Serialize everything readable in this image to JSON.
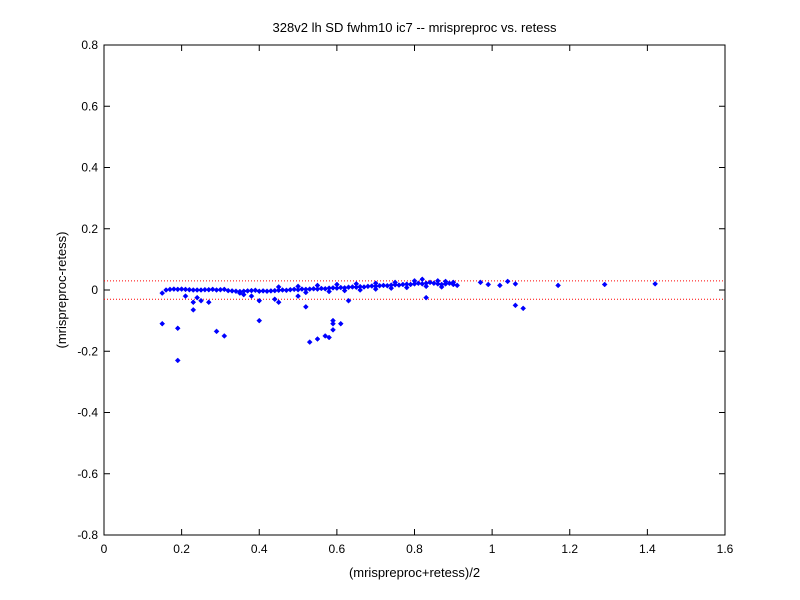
{
  "chart_data": {
    "type": "scatter",
    "title": "328v2 lh SD fwhm10 ic7 -- mrispreproc vs. retess",
    "xlabel": "(mrispreproc+retess)/2",
    "ylabel": "(mrispreproc-retess)",
    "xlim": [
      0,
      1.6
    ],
    "ylim": [
      -0.8,
      0.8
    ],
    "x_ticks": [
      "0",
      "0.2",
      "0.4",
      "0.6",
      "0.8",
      "1",
      "1.2",
      "1.4",
      "1.6"
    ],
    "y_ticks": [
      "0.8",
      "0.6",
      "0.4",
      "0.2",
      "0",
      "-0.2",
      "-0.4",
      "-0.6",
      "-0.8"
    ],
    "x_tick_values": [
      0,
      0.2,
      0.4,
      0.6,
      0.8,
      1.0,
      1.2,
      1.4,
      1.6
    ],
    "y_tick_values": [
      0.8,
      0.6,
      0.4,
      0.2,
      0,
      -0.2,
      -0.4,
      -0.6,
      -0.8
    ],
    "grid": false,
    "marker_color": "#0000ff",
    "reference_line_color": "#ff0000",
    "reference_lines": [
      0.03,
      -0.03
    ],
    "series": [
      {
        "points": [
          [
            0.15,
            -0.01
          ],
          [
            0.16,
            0.0
          ],
          [
            0.17,
            0.002
          ],
          [
            0.18,
            0.003
          ],
          [
            0.19,
            0.002
          ],
          [
            0.2,
            0.003
          ],
          [
            0.21,
            0.002
          ],
          [
            0.22,
            0.001
          ],
          [
            0.23,
            0.0
          ],
          [
            0.24,
            0.0
          ],
          [
            0.25,
            0.0
          ],
          [
            0.26,
            0.001
          ],
          [
            0.27,
            0.001
          ],
          [
            0.28,
            0.002
          ],
          [
            0.29,
            0.0
          ],
          [
            0.3,
            0.001
          ],
          [
            0.31,
            0.002
          ],
          [
            0.32,
            -0.002
          ],
          [
            0.33,
            -0.003
          ],
          [
            0.34,
            -0.004
          ],
          [
            0.35,
            -0.005
          ],
          [
            0.36,
            -0.004
          ],
          [
            0.37,
            -0.003
          ],
          [
            0.38,
            -0.002
          ],
          [
            0.39,
            -0.001
          ],
          [
            0.4,
            -0.004
          ],
          [
            0.41,
            -0.003
          ],
          [
            0.42,
            -0.004
          ],
          [
            0.43,
            -0.003
          ],
          [
            0.44,
            -0.002
          ],
          [
            0.45,
            -0.001
          ],
          [
            0.46,
            0.0
          ],
          [
            0.47,
            -0.001
          ],
          [
            0.48,
            0.001
          ],
          [
            0.49,
            0.002
          ],
          [
            0.5,
            0.001
          ],
          [
            0.51,
            0.003
          ],
          [
            0.52,
            0.002
          ],
          [
            0.53,
            0.003
          ],
          [
            0.54,
            0.004
          ],
          [
            0.55,
            0.003
          ],
          [
            0.56,
            0.005
          ],
          [
            0.57,
            0.004
          ],
          [
            0.58,
            0.006
          ],
          [
            0.59,
            0.007
          ],
          [
            0.6,
            0.006
          ],
          [
            0.61,
            0.008
          ],
          [
            0.62,
            0.007
          ],
          [
            0.63,
            0.009
          ],
          [
            0.64,
            0.01
          ],
          [
            0.65,
            0.009
          ],
          [
            0.66,
            0.011
          ],
          [
            0.67,
            0.01
          ],
          [
            0.68,
            0.012
          ],
          [
            0.69,
            0.013
          ],
          [
            0.7,
            0.012
          ],
          [
            0.71,
            0.014
          ],
          [
            0.72,
            0.015
          ],
          [
            0.73,
            0.014
          ],
          [
            0.74,
            0.016
          ],
          [
            0.75,
            0.017
          ],
          [
            0.76,
            0.016
          ],
          [
            0.77,
            0.018
          ],
          [
            0.78,
            0.019
          ],
          [
            0.79,
            0.018
          ],
          [
            0.8,
            0.02
          ],
          [
            0.81,
            0.022
          ],
          [
            0.82,
            0.02
          ],
          [
            0.83,
            0.022
          ],
          [
            0.84,
            0.025
          ],
          [
            0.85,
            0.022
          ],
          [
            0.86,
            0.02
          ],
          [
            0.87,
            0.018
          ],
          [
            0.88,
            0.02
          ],
          [
            0.89,
            0.022
          ],
          [
            0.9,
            0.018
          ],
          [
            0.45,
            0.01
          ],
          [
            0.5,
            0.012
          ],
          [
            0.55,
            0.015
          ],
          [
            0.6,
            0.018
          ],
          [
            0.65,
            0.02
          ],
          [
            0.7,
            0.022
          ],
          [
            0.75,
            0.025
          ],
          [
            0.8,
            0.03
          ],
          [
            0.82,
            0.035
          ],
          [
            0.86,
            0.03
          ],
          [
            0.88,
            0.028
          ],
          [
            0.9,
            0.025
          ],
          [
            0.52,
            -0.008
          ],
          [
            0.58,
            -0.005
          ],
          [
            0.62,
            -0.002
          ],
          [
            0.66,
            0.0
          ],
          [
            0.7,
            0.003
          ],
          [
            0.74,
            0.006
          ],
          [
            0.78,
            0.008
          ],
          [
            0.83,
            0.012
          ],
          [
            0.87,
            0.01
          ],
          [
            0.91,
            0.015
          ],
          [
            0.97,
            0.025
          ],
          [
            0.99,
            0.018
          ],
          [
            1.02,
            0.015
          ],
          [
            1.04,
            0.028
          ],
          [
            1.06,
            0.02
          ],
          [
            1.17,
            0.015
          ],
          [
            1.29,
            0.018
          ],
          [
            1.42,
            0.02
          ],
          [
            0.21,
            -0.02
          ],
          [
            0.23,
            -0.04
          ],
          [
            0.24,
            -0.025
          ],
          [
            0.25,
            -0.035
          ],
          [
            0.27,
            -0.04
          ],
          [
            0.35,
            -0.01
          ],
          [
            0.36,
            -0.015
          ],
          [
            0.38,
            -0.02
          ],
          [
            0.4,
            -0.035
          ],
          [
            0.44,
            -0.03
          ],
          [
            0.45,
            -0.04
          ],
          [
            0.5,
            -0.02
          ],
          [
            0.52,
            -0.055
          ],
          [
            0.63,
            -0.035
          ],
          [
            0.83,
            -0.025
          ],
          [
            1.06,
            -0.05
          ],
          [
            1.08,
            -0.06
          ],
          [
            0.23,
            -0.065
          ],
          [
            0.29,
            -0.135
          ],
          [
            0.31,
            -0.15
          ],
          [
            0.4,
            -0.1
          ],
          [
            0.53,
            -0.17
          ],
          [
            0.55,
            -0.16
          ],
          [
            0.57,
            -0.15
          ],
          [
            0.58,
            -0.155
          ],
          [
            0.59,
            -0.11
          ],
          [
            0.59,
            -0.1
          ],
          [
            0.59,
            -0.13
          ],
          [
            0.61,
            -0.11
          ],
          [
            0.15,
            -0.11
          ],
          [
            0.19,
            -0.125
          ],
          [
            0.19,
            -0.23
          ]
        ]
      }
    ]
  }
}
